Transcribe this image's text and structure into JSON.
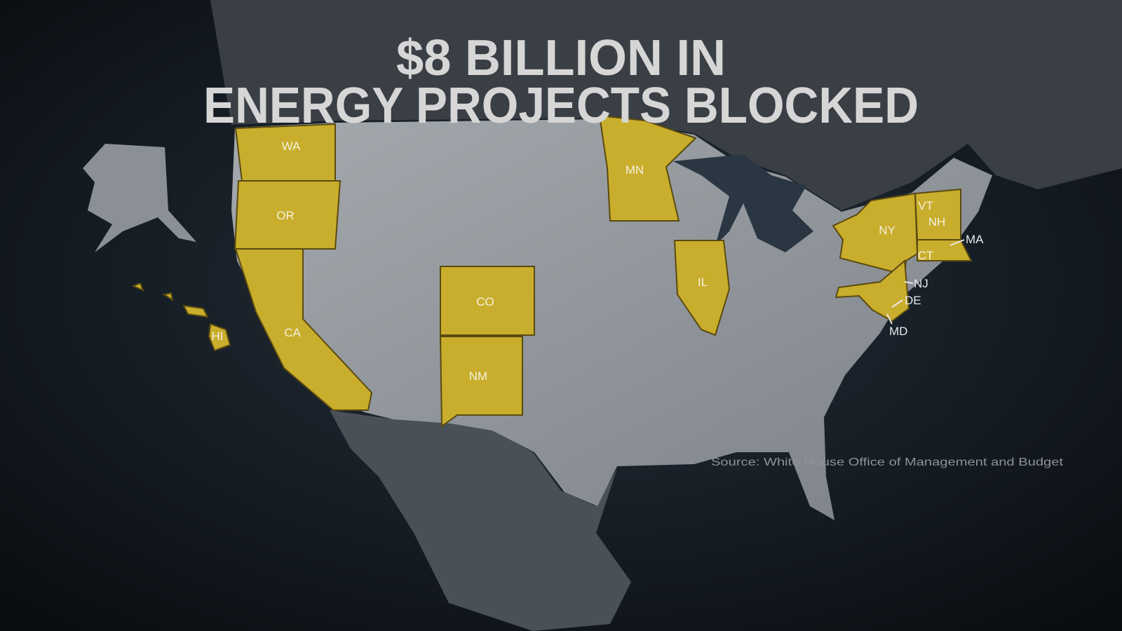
{
  "title": {
    "line1": "$8 BILLION IN",
    "line2": "ENERGY PROJECTS BLOCKED"
  },
  "colors": {
    "highlight": "#c9ad2c",
    "land": "#8d9399",
    "ocean": "#17222c",
    "neighbors": "#3b4148"
  },
  "states": {
    "WA": "WA",
    "OR": "OR",
    "CA": "CA",
    "HI": "HI",
    "CO": "CO",
    "NM": "NM",
    "MN": "MN",
    "IL": "IL",
    "NY": "NY",
    "VT": "VT",
    "NH": "NH",
    "MA": "MA",
    "CT": "CT",
    "NJ": "NJ",
    "DE": "DE",
    "MD": "MD"
  },
  "source": "Source: White House Office of Management and Budget"
}
